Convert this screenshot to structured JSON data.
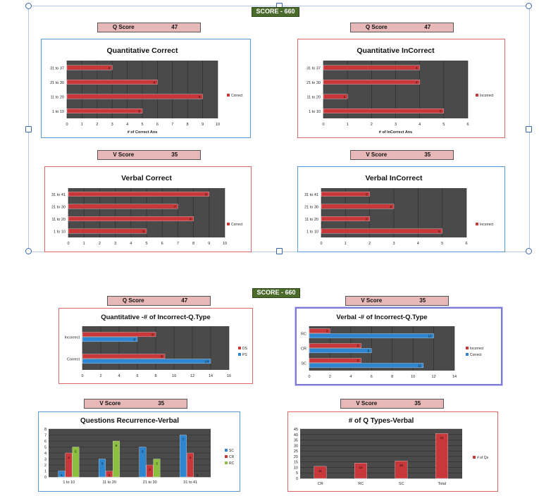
{
  "top_section": {
    "score_badge": "SCORE - 660",
    "q_score_left": {
      "label": "Q Score",
      "value": "47"
    },
    "q_score_right": {
      "label": "Q Score",
      "value": "47"
    },
    "v_score_left": {
      "label": "V Score",
      "value": "35"
    },
    "v_score_right": {
      "label": "V Score",
      "value": "35"
    }
  },
  "bottom_section": {
    "score_badge": "SCORE - 660",
    "q_score": {
      "label": "Q Score",
      "value": "47"
    },
    "v_score_top": {
      "label": "V Score",
      "value": "35"
    },
    "v_score_bl": {
      "label": "V Score",
      "value": "35"
    },
    "v_score_br": {
      "label": "V Score",
      "value": "35"
    }
  },
  "colors": {
    "red": "#c8373a",
    "blue": "#2f86d0",
    "green": "#8cbf3f",
    "plot_bg": "#4a4a4a",
    "border_blue": "#5b9bd5",
    "border_red": "#e06666"
  },
  "chart_data": [
    {
      "id": "qc",
      "type": "bar",
      "orientation": "horizontal",
      "title": "Quantitative Correct",
      "xlabel": "# of Correct Ans",
      "categories": [
        "31 to 37",
        "21 to 30",
        "11 to 20",
        "1 to 10"
      ],
      "series": [
        {
          "name": "Correct",
          "values": [
            3,
            6,
            9,
            5
          ]
        }
      ],
      "xlim": [
        0,
        10
      ],
      "xticks": [
        "0",
        "1",
        "2",
        "3",
        "4",
        "5",
        "6",
        "7",
        "8",
        "9",
        "10"
      ],
      "grid": true,
      "legend": "right"
    },
    {
      "id": "qi",
      "type": "bar",
      "orientation": "horizontal",
      "title": "Quantitative InCorrect",
      "xlabel": "# of InCorrect Ans",
      "categories": [
        "31 to 37",
        "21 to 30",
        "11 to 20",
        "1 to 10"
      ],
      "series": [
        {
          "name": "Incorrect",
          "values": [
            4,
            4,
            1,
            5
          ]
        }
      ],
      "xlim": [
        0,
        6
      ],
      "xticks": [
        "0",
        "1",
        "2",
        "3",
        "4",
        "5",
        "6"
      ],
      "grid": true,
      "legend": "right"
    },
    {
      "id": "vc",
      "type": "bar",
      "orientation": "horizontal",
      "title": "Verbal Correct",
      "xlabel": "",
      "categories": [
        "31 to 41",
        "21 to 30",
        "11 to 20",
        "1 to 10"
      ],
      "series": [
        {
          "name": "Correct",
          "values": [
            9,
            7,
            8,
            5
          ]
        }
      ],
      "xlim": [
        0,
        10
      ],
      "xticks": [
        "0",
        "1",
        "2",
        "3",
        "4",
        "5",
        "6",
        "7",
        "8",
        "9",
        "10"
      ],
      "grid": true,
      "legend": "right"
    },
    {
      "id": "vi",
      "type": "bar",
      "orientation": "horizontal",
      "title": "Verbal InCorrect",
      "xlabel": "",
      "categories": [
        "31 to 41",
        "21 to 30",
        "11 to 20",
        "1 to 10"
      ],
      "series": [
        {
          "name": "Incorrect",
          "values": [
            2,
            3,
            2,
            5
          ]
        }
      ],
      "xlim": [
        0,
        6
      ],
      "xticks": [
        "0",
        "1",
        "2",
        "3",
        "4",
        "5",
        "6"
      ],
      "grid": true,
      "legend": "right"
    },
    {
      "id": "qt",
      "type": "bar",
      "orientation": "horizontal",
      "title": "Quantitative -# of Incorrect-Q.Type",
      "categories": [
        "Incorrect",
        "Correct"
      ],
      "series": [
        {
          "name": "DS",
          "values": [
            8,
            9
          ]
        },
        {
          "name": "PS",
          "values": [
            6,
            14
          ]
        }
      ],
      "xlim": [
        0,
        16
      ],
      "xticks": [
        "0",
        "2",
        "4",
        "6",
        "8",
        "10",
        "12",
        "14",
        "16"
      ],
      "grid": true,
      "legend": "right"
    },
    {
      "id": "vt",
      "type": "bar",
      "orientation": "horizontal",
      "title": "Verbal -# of Incorrect-Q.Type",
      "categories": [
        "RC",
        "CR",
        "SC"
      ],
      "series": [
        {
          "name": "Incorrect",
          "values": [
            2,
            5,
            5
          ]
        },
        {
          "name": "Correct",
          "values": [
            12,
            6,
            11
          ]
        }
      ],
      "xlim": [
        0,
        14
      ],
      "xticks": [
        "0",
        "2",
        "4",
        "6",
        "8",
        "10",
        "12",
        "14"
      ],
      "grid": true,
      "legend": "right"
    },
    {
      "id": "qr",
      "type": "bar",
      "orientation": "vertical",
      "title": "Questions Recurrence-Verbal",
      "categories": [
        "1 to 10",
        "11 to 20",
        "21 to 30",
        "31 to 41"
      ],
      "series": [
        {
          "name": "SC",
          "values": [
            1,
            3,
            5,
            7
          ]
        },
        {
          "name": "CR",
          "values": [
            4,
            1,
            2,
            4
          ]
        },
        {
          "name": "RC",
          "values": [
            5,
            6,
            3,
            0
          ]
        }
      ],
      "ylim": [
        0,
        8
      ],
      "yticks": [
        "0",
        "1",
        "2",
        "3",
        "4",
        "5",
        "6",
        "7",
        "8"
      ],
      "grid": true,
      "legend": "right"
    },
    {
      "id": "nq",
      "type": "bar",
      "orientation": "vertical",
      "title": "# of Q Types-Verbal",
      "categories": [
        "CR",
        "RC",
        "SC",
        "Total"
      ],
      "series": [
        {
          "name": "# of Qs",
          "values": [
            11,
            14,
            16,
            41
          ]
        }
      ],
      "ylim": [
        0,
        45
      ],
      "yticks": [
        "0",
        "5",
        "10",
        "15",
        "20",
        "25",
        "30",
        "35",
        "40",
        "45"
      ],
      "grid": true,
      "legend": "right"
    }
  ]
}
